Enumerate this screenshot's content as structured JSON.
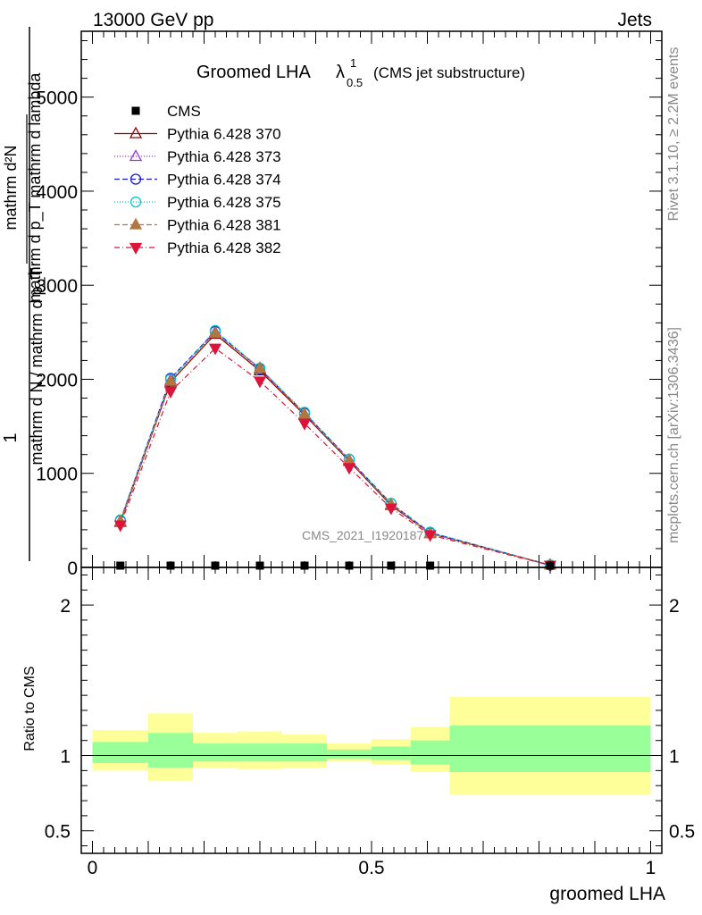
{
  "header": {
    "left": "13000 GeV pp",
    "right": "Jets"
  },
  "side": {
    "rivet": "Rivet 3.1.10, ≥ 2.2M events",
    "mcplots": "mcplots.cern.ch [arXiv:1306.3436]"
  },
  "chart_data": {
    "type": "line",
    "title": "Groomed LHA",
    "title_symbol": "λ",
    "title_sup": "1",
    "title_sub": "0.5",
    "title_suffix": "(CMS jet substructure)",
    "ylabel_numerator": "mathrm d²N",
    "ylabel_denominator": "mathrm d p_T mathrm d lambda",
    "ylabel_main_num": "1",
    "ylabel_main_den": "mathrm d N / mathrm d p_T",
    "xlabel": "groomed LHA",
    "ratio_ylabel": "Ratio to CMS",
    "watermark": "CMS_2021_I1920187",
    "xlim": [
      -0.02,
      1.02
    ],
    "ylim": [
      0,
      5700
    ],
    "ratio_ylim": [
      0.35,
      2.25
    ],
    "x_ticks": [
      "0",
      "0.5",
      "1"
    ],
    "y_ticks": [
      "0",
      "1000",
      "2000",
      "3000",
      "4000",
      "5000"
    ],
    "ratio_ticks": [
      "0.5",
      "1",
      "2"
    ],
    "x": [
      0.05,
      0.14,
      0.22,
      0.3,
      0.38,
      0.46,
      0.535,
      0.605,
      0.82
    ],
    "data": {
      "name": "CMS",
      "values": [
        5,
        5,
        5,
        5,
        5,
        5,
        5,
        5,
        5
      ]
    },
    "series": [
      {
        "name": "Pythia 6.428 370",
        "color": "#8b0000",
        "marker": "triangle-open",
        "dash": "",
        "values": [
          480,
          1970,
          2480,
          2090,
          1620,
          1130,
          660,
          360,
          25
        ]
      },
      {
        "name": "Pythia 6.428 373",
        "color": "#9b30d0",
        "marker": "triangle-open",
        "dash": "1,2",
        "values": [
          490,
          1990,
          2500,
          2110,
          1630,
          1140,
          670,
          365,
          25
        ]
      },
      {
        "name": "Pythia 6.428 374",
        "color": "#1a1ad6",
        "marker": "circle-open",
        "dash": "6,3",
        "values": [
          500,
          2010,
          2510,
          2110,
          1640,
          1150,
          680,
          370,
          25
        ]
      },
      {
        "name": "Pythia 6.428 375",
        "color": "#00cccc",
        "marker": "circle-open",
        "dash": "1,2",
        "values": [
          505,
          2000,
          2520,
          2120,
          1650,
          1150,
          680,
          375,
          26
        ]
      },
      {
        "name": "Pythia 6.428 381",
        "color": "#b07840",
        "marker": "triangle-filled",
        "dash": "6,3",
        "values": [
          490,
          1980,
          2490,
          2120,
          1630,
          1140,
          670,
          360,
          25
        ]
      },
      {
        "name": "Pythia 6.428 382",
        "color": "#dc143c",
        "marker": "triangle-down-filled",
        "dash": "6,3,1,3",
        "values": [
          450,
          1870,
          2330,
          1980,
          1530,
          1060,
          630,
          345,
          22
        ]
      }
    ],
    "ratio_bands": {
      "bin_edges": [
        0.0,
        0.1,
        0.18,
        0.26,
        0.34,
        0.42,
        0.5,
        0.57,
        0.64,
        1.0
      ],
      "stat_lo": [
        0.95,
        0.92,
        0.96,
        0.96,
        0.96,
        0.98,
        0.97,
        0.94,
        0.89
      ],
      "stat_hi": [
        1.09,
        1.15,
        1.08,
        1.08,
        1.08,
        1.04,
        1.06,
        1.1,
        1.2
      ],
      "total_lo": [
        0.9,
        0.83,
        0.92,
        0.91,
        0.92,
        0.96,
        0.94,
        0.89,
        0.74
      ],
      "total_hi": [
        1.17,
        1.28,
        1.15,
        1.16,
        1.14,
        1.08,
        1.11,
        1.19,
        1.39
      ],
      "stat_color": "#99ff99",
      "total_color": "#ffff99"
    }
  }
}
